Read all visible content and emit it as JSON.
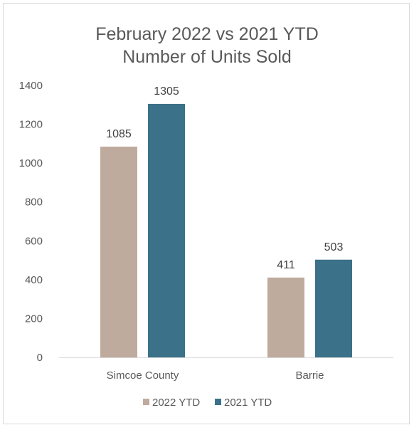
{
  "chart_data": {
    "type": "bar",
    "title_lines": [
      "February 2022 vs 2021 YTD",
      "Number of Units Sold"
    ],
    "categories": [
      "Simcoe County",
      "Barrie"
    ],
    "series": [
      {
        "name": "2022 YTD",
        "values": [
          1085,
          411
        ],
        "color": "#bfab9d"
      },
      {
        "name": "2021 YTD",
        "values": [
          1305,
          503
        ],
        "color": "#3b7189"
      }
    ],
    "ylim": [
      0,
      1400
    ],
    "yticks": [
      "0",
      "200",
      "400",
      "600",
      "800",
      "1000",
      "1200",
      "1400"
    ],
    "grid": false,
    "legend_position": "bottom",
    "data_labels": true
  }
}
